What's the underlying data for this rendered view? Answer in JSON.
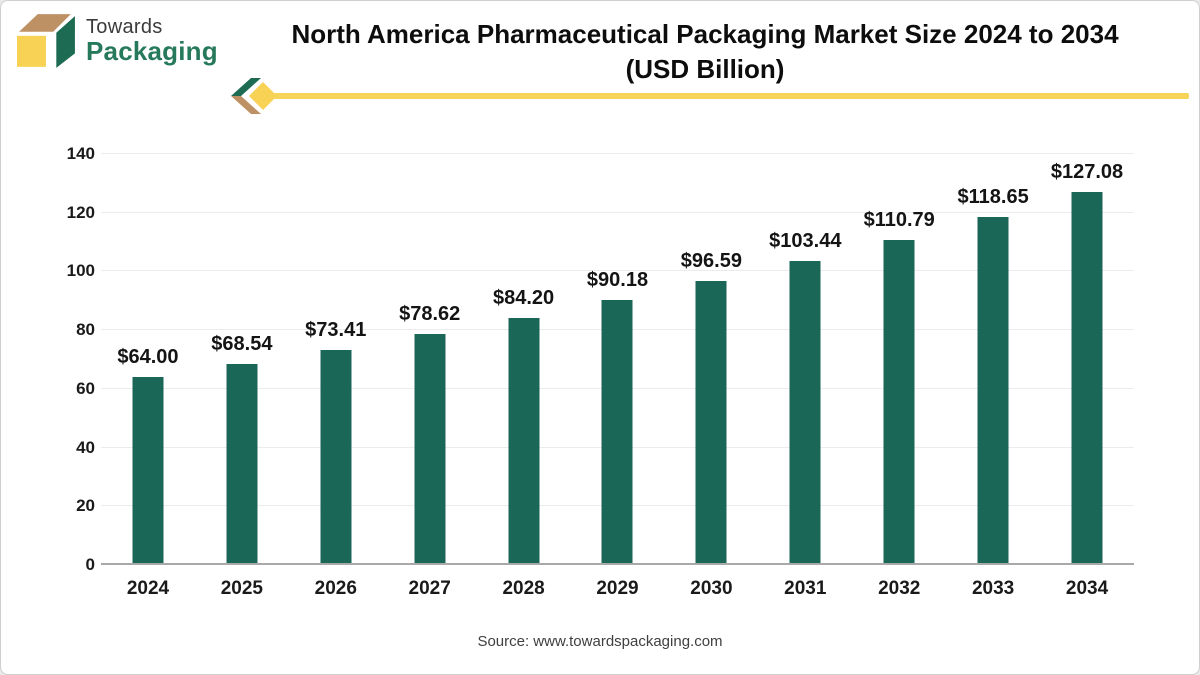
{
  "logo": {
    "line1": "Towards",
    "line2": "Packaging",
    "colors": {
      "tan": "#be9164",
      "green": "#1d6b52",
      "yellow": "#f8d254"
    }
  },
  "header": {
    "title_line1": "North America Pharmaceutical Packaging Market Size 2024 to 2034",
    "title_line2": "(USD Billion)"
  },
  "divider": {
    "line_color": "#f6d45a",
    "chevron_green": "#1d6b52",
    "chevron_tan": "#be9164",
    "chevron_yellow": "#f8d254"
  },
  "chart_data": {
    "type": "bar",
    "title": "North America Pharmaceutical Packaging Market Size 2024 to 2034 (USD Billion)",
    "categories": [
      "2024",
      "2025",
      "2026",
      "2027",
      "2028",
      "2029",
      "2030",
      "2031",
      "2032",
      "2033",
      "2034"
    ],
    "values": [
      64.0,
      68.54,
      73.41,
      78.62,
      84.2,
      90.18,
      96.59,
      103.44,
      110.79,
      118.65,
      127.08
    ],
    "value_labels": [
      "$64.00",
      "$68.54",
      "$73.41",
      "$78.62",
      "$84.20",
      "$90.18",
      "$96.59",
      "$103.44",
      "$110.79",
      "$118.65",
      "$127.08"
    ],
    "xlabel": "",
    "ylabel": "",
    "ylim": [
      0,
      140
    ],
    "yticks": [
      0,
      20,
      40,
      60,
      80,
      100,
      120,
      140
    ],
    "grid": "horizontal",
    "legend": "none",
    "bar_color": "#1a6657",
    "gridline_color": "#ececec",
    "axis_line_color": "#a9a9a9"
  },
  "footer": {
    "source": "Source: www.towardspackaging.com"
  }
}
